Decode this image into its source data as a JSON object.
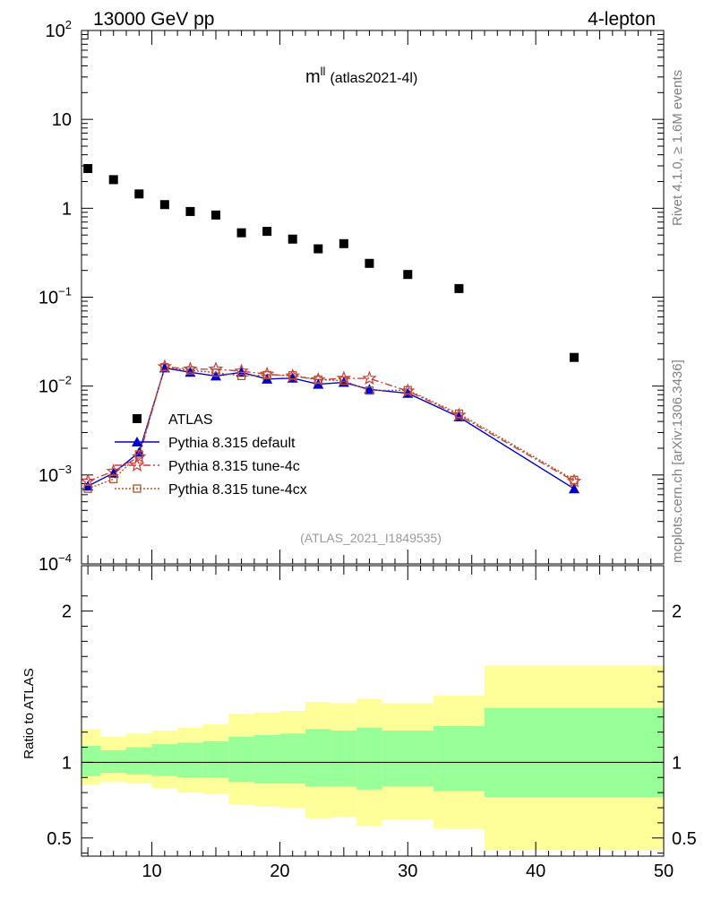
{
  "header": {
    "left": "13000 GeV pp",
    "right": "4-lepton"
  },
  "side_labels": {
    "rivet": "Rivet 4.1.0, ≥ 1.6M events",
    "mcplots": "mcplots.cern.ch [arXiv:1306.3436]"
  },
  "chart_data": {
    "type": "scatter",
    "title": "m",
    "title_superscript": "ll",
    "title_suffix": "(atlas2021-4l)",
    "watermark": "(ATLAS_2021_I1849535)",
    "xlim": [
      4.5,
      50
    ],
    "ylim": [
      0.0001,
      100
    ],
    "yscale": "log",
    "x_ticks": [
      {
        "value": 10,
        "label": "10"
      },
      {
        "value": 20,
        "label": "20"
      },
      {
        "value": 30,
        "label": "30"
      },
      {
        "value": 40,
        "label": "40"
      },
      {
        "value": 50,
        "label": "50"
      }
    ],
    "y_ticks": [
      {
        "value": 100,
        "base": "10",
        "exp": "2"
      },
      {
        "value": 10,
        "base": "10",
        "exp": ""
      },
      {
        "value": 1,
        "base": "1",
        "exp": ""
      },
      {
        "value": 0.1,
        "base": "10",
        "exp": "−1"
      },
      {
        "value": 0.01,
        "base": "10",
        "exp": "−2"
      },
      {
        "value": 0.001,
        "base": "10",
        "exp": "−3"
      },
      {
        "value": 0.0001,
        "base": "10",
        "exp": "−4"
      }
    ],
    "legend": [
      {
        "label": "ATLAS",
        "color": "#000000",
        "marker": "square",
        "line": "none"
      },
      {
        "label": "Pythia 8.315 default",
        "color": "#0000cc",
        "marker": "triangle",
        "line": "solid"
      },
      {
        "label": "Pythia 8.315 tune-4c",
        "color": "#d43a3a",
        "marker": "star",
        "line": "dashdot"
      },
      {
        "label": "Pythia 8.315 tune-4cx",
        "color": "#b5552a",
        "marker": "open-square",
        "line": "dotted"
      }
    ],
    "atlas": {
      "x": [
        5,
        7,
        9,
        11,
        13,
        15,
        17,
        19,
        21,
        23,
        25,
        27,
        30,
        34,
        43
      ],
      "y": [
        2.8,
        2.1,
        1.45,
        1.1,
        0.92,
        0.84,
        0.53,
        0.55,
        0.45,
        0.35,
        0.4,
        0.24,
        0.18,
        0.125,
        0.021
      ]
    },
    "series": [
      {
        "name": "Pythia 8.315 default",
        "x": [
          5,
          7,
          9,
          11,
          13,
          15,
          17,
          19,
          21,
          23,
          25,
          27,
          30,
          34,
          43
        ],
        "y": [
          0.00075,
          0.00105,
          0.0018,
          0.016,
          0.0143,
          0.013,
          0.0143,
          0.012,
          0.0123,
          0.0105,
          0.011,
          0.0092,
          0.0083,
          0.0045,
          0.0007
        ]
      },
      {
        "name": "Pythia 8.315 tune-4c",
        "x": [
          5,
          7,
          9,
          11,
          13,
          15,
          17,
          19,
          21,
          23,
          25,
          27,
          30,
          34,
          43
        ],
        "y": [
          0.00085,
          0.0011,
          0.0016,
          0.0165,
          0.0155,
          0.0155,
          0.0147,
          0.0136,
          0.013,
          0.0118,
          0.0122,
          0.0122,
          0.0088,
          0.0047,
          0.00085
        ]
      },
      {
        "name": "Pythia 8.315 tune-4cx",
        "x": [
          5,
          7,
          9,
          11,
          13,
          15,
          17,
          19,
          21,
          23,
          25,
          27,
          30,
          34,
          43
        ],
        "y": [
          0.0007,
          0.0009,
          0.0017,
          0.0163,
          0.015,
          0.0142,
          0.013,
          0.0133,
          0.0132,
          0.0118,
          0.0115,
          0.0089,
          0.009,
          0.0049,
          0.00088
        ]
      }
    ],
    "ratio": {
      "ylabel": "Ratio to ATLAS",
      "ylim": [
        0.38,
        2.3
      ],
      "y_ticks": [
        {
          "value": 0.5,
          "label": "0.5"
        },
        {
          "value": 1,
          "label": "1"
        },
        {
          "value": 2,
          "label": "2"
        }
      ],
      "bands": [
        {
          "x0": 4.5,
          "x1": 6,
          "yellow": [
            0.85,
            1.22
          ],
          "green": [
            0.91,
            1.11
          ]
        },
        {
          "x0": 6,
          "x1": 8,
          "yellow": [
            0.87,
            1.17
          ],
          "green": [
            0.93,
            1.08
          ]
        },
        {
          "x0": 8,
          "x1": 10,
          "yellow": [
            0.86,
            1.19
          ],
          "green": [
            0.92,
            1.1
          ]
        },
        {
          "x0": 10,
          "x1": 12,
          "yellow": [
            0.83,
            1.21
          ],
          "green": [
            0.91,
            1.12
          ]
        },
        {
          "x0": 12,
          "x1": 14,
          "yellow": [
            0.8,
            1.23
          ],
          "green": [
            0.9,
            1.13
          ]
        },
        {
          "x0": 14,
          "x1": 16,
          "yellow": [
            0.79,
            1.25
          ],
          "green": [
            0.9,
            1.14
          ]
        },
        {
          "x0": 16,
          "x1": 18,
          "yellow": [
            0.72,
            1.32
          ],
          "green": [
            0.87,
            1.17
          ]
        },
        {
          "x0": 18,
          "x1": 20,
          "yellow": [
            0.71,
            1.33
          ],
          "green": [
            0.86,
            1.18
          ]
        },
        {
          "x0": 20,
          "x1": 22,
          "yellow": [
            0.7,
            1.34
          ],
          "green": [
            0.86,
            1.19
          ]
        },
        {
          "x0": 22,
          "x1": 24,
          "yellow": [
            0.63,
            1.4
          ],
          "green": [
            0.84,
            1.22
          ]
        },
        {
          "x0": 24,
          "x1": 26,
          "yellow": [
            0.64,
            1.39
          ],
          "green": [
            0.84,
            1.21
          ]
        },
        {
          "x0": 26,
          "x1": 28,
          "yellow": [
            0.58,
            1.42
          ],
          "green": [
            0.82,
            1.23
          ]
        },
        {
          "x0": 28,
          "x1": 32,
          "yellow": [
            0.62,
            1.39
          ],
          "green": [
            0.84,
            1.21
          ]
        },
        {
          "x0": 32,
          "x1": 36,
          "yellow": [
            0.56,
            1.44
          ],
          "green": [
            0.81,
            1.24
          ]
        },
        {
          "x0": 36,
          "x1": 50,
          "yellow": [
            0.42,
            1.64
          ],
          "green": [
            0.77,
            1.36
          ]
        }
      ]
    }
  }
}
